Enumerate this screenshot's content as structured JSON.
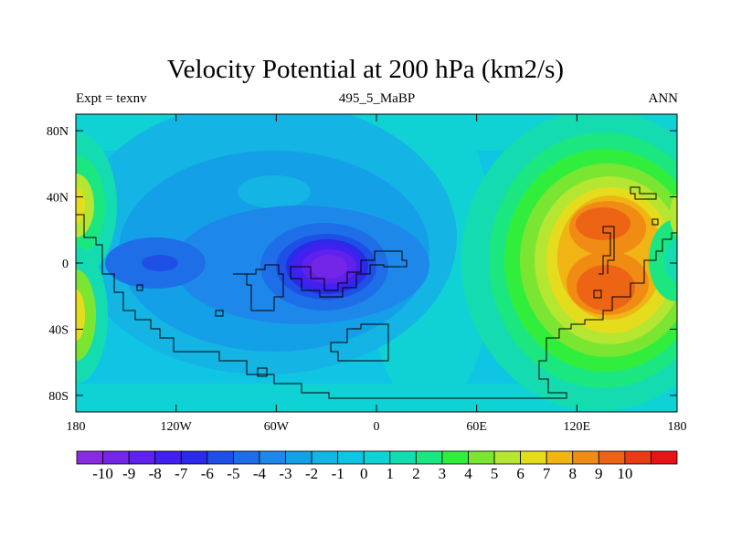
{
  "title": "Velocity Potential at 200 hPa (km2/s)",
  "left_label": "Expt = texnv",
  "center_label": "495_5_MaBP",
  "right_label": "ANN",
  "chart_data": {
    "type": "contour-map",
    "title": "Velocity Potential at 200 hPa (km2/s)",
    "x_ticks": [
      "180",
      "120W",
      "60W",
      "0",
      "60E",
      "120E",
      "180"
    ],
    "x_tick_values": [
      -180,
      -120,
      -60,
      0,
      60,
      120,
      180
    ],
    "y_ticks": [
      "80N",
      "40N",
      "0",
      "40S",
      "80S"
    ],
    "y_tick_values": [
      80,
      40,
      0,
      -40,
      -80
    ],
    "xlim": [
      -180,
      180
    ],
    "ylim": [
      -90,
      90
    ],
    "colorbar_labels": [
      "-10",
      "-9",
      "-8",
      "-7",
      "-6",
      "-5",
      "-4",
      "-3",
      "-2",
      "-1",
      "0",
      "1",
      "2",
      "3",
      "4",
      "5",
      "6",
      "7",
      "8",
      "9",
      "10"
    ],
    "colorbar_colors": [
      "#8a2be2",
      "#7326e8",
      "#5e22ec",
      "#4320f0",
      "#2a2ae8",
      "#1e50e6",
      "#1e6ee8",
      "#1e88ea",
      "#14a0e6",
      "#14b4e4",
      "#10c4e4",
      "#10d2d4",
      "#14dcb0",
      "#1ce680",
      "#32ee3c",
      "#7ae632",
      "#b4e632",
      "#e6dc1e",
      "#f0b414",
      "#f08c14",
      "#ec6414",
      "#e83c14",
      "#e61414"
    ],
    "features": [
      {
        "name": "strong convergence center over Atlantic",
        "lon": -20,
        "lat": 0,
        "value": -9
      },
      {
        "name": "divergence center over western Pacific",
        "lon": 145,
        "lat": 10,
        "value": 8
      },
      {
        "name": "secondary minimum over eastern Pacific",
        "lon": -130,
        "lat": 0,
        "value": -6
      }
    ]
  }
}
